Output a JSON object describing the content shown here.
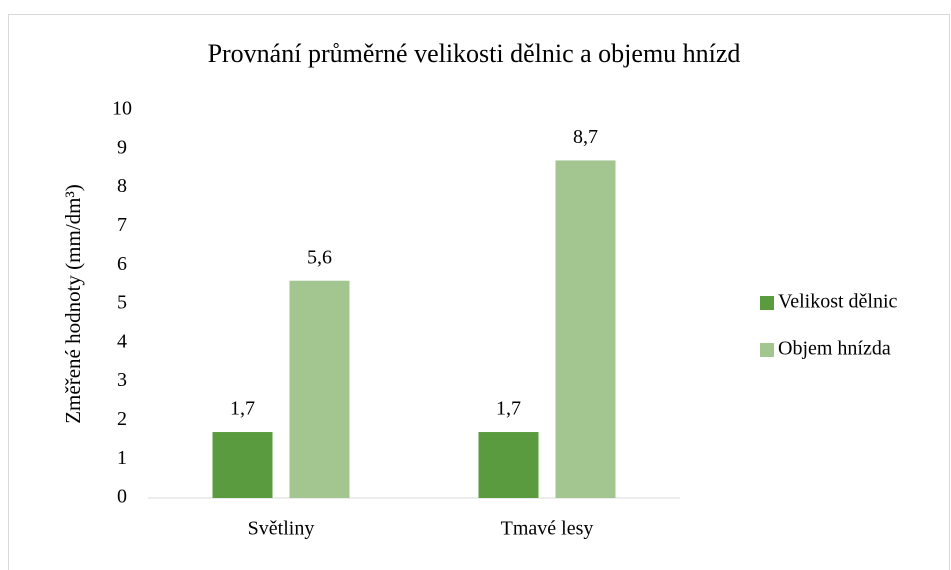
{
  "chart_data": {
    "type": "bar",
    "title": "Provnání průměrné velikosti dělnic a objemu hnízd",
    "y_label": "Změřené hodnoty (mm/dm³)",
    "categories": [
      "Světliny",
      "Tmavé lesy"
    ],
    "series": [
      {
        "name": "Velikost dělnic",
        "color": "#5b9b3f",
        "values": [
          1.7,
          1.7
        ],
        "value_labels": [
          "1,7",
          "1,7"
        ]
      },
      {
        "name": "Objem hnízda",
        "color": "#a3c590",
        "values": [
          5.6,
          8.7
        ],
        "value_labels": [
          "5,6",
          "8,7"
        ]
      }
    ],
    "ylim": [
      0,
      10
    ],
    "yticks": [
      0,
      1,
      2,
      3,
      4,
      5,
      6,
      7,
      8,
      9,
      10
    ],
    "grid": false,
    "legend": "right"
  }
}
